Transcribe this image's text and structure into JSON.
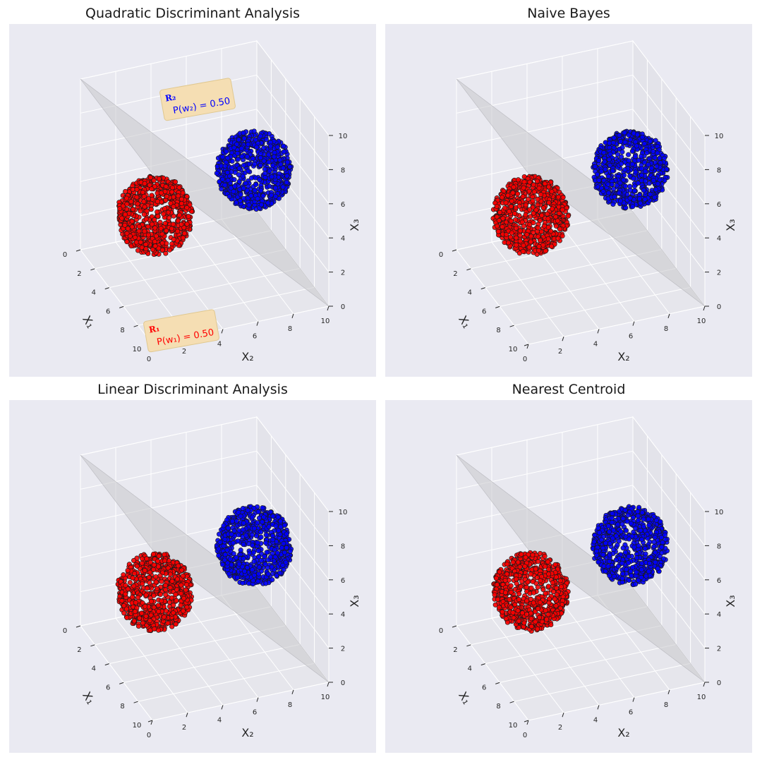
{
  "chart_data": [
    {
      "type": "scatter",
      "title": "Quadratic Discriminant Analysis",
      "xlabel": "X₁",
      "ylabel": "X₂",
      "zlabel": "X₃",
      "projection": "3d",
      "xlim": [
        0,
        10
      ],
      "ylim": [
        0,
        10
      ],
      "zlim": [
        0,
        10
      ],
      "xticks": [
        "0",
        "2",
        "4",
        "6",
        "8",
        "10"
      ],
      "yticks": [
        "0",
        "2",
        "4",
        "6",
        "8",
        "10"
      ],
      "zticks": [
        "0",
        "2",
        "4",
        "6",
        "8",
        "10"
      ],
      "grid": true,
      "series": [
        {
          "color": "#ff0000",
          "center": [
            3,
            3,
            3
          ],
          "radius": 2
        },
        {
          "color": "#0000ff",
          "center": [
            7,
            7,
            7
          ],
          "radius": 2
        }
      ],
      "decision_boundary": "plane",
      "annotations": [
        {
          "region": "R₂",
          "text": "P(w₂) = 0.50",
          "color": "#0000ff"
        },
        {
          "region": "R₁",
          "text": "P(w₁) = 0.50",
          "color": "#ff0000"
        }
      ]
    },
    {
      "type": "scatter",
      "title": "Naive Bayes",
      "xlabel": "X₁",
      "ylabel": "X₂",
      "zlabel": "X₃",
      "projection": "3d",
      "xlim": [
        0,
        10
      ],
      "ylim": [
        0,
        10
      ],
      "zlim": [
        0,
        10
      ],
      "xticks": [
        "0",
        "2",
        "4",
        "6",
        "8",
        "10"
      ],
      "yticks": [
        "0",
        "2",
        "4",
        "6",
        "8",
        "10"
      ],
      "zticks": [
        "0",
        "2",
        "4",
        "6",
        "8",
        "10"
      ],
      "grid": true,
      "series": [
        {
          "color": "#ff0000",
          "center": [
            3,
            3,
            3
          ],
          "radius": 2
        },
        {
          "color": "#0000ff",
          "center": [
            7,
            7,
            7
          ],
          "radius": 2
        }
      ],
      "decision_boundary": "plane",
      "annotations": []
    },
    {
      "type": "scatter",
      "title": "Linear Discriminant Analysis",
      "xlabel": "X₁",
      "ylabel": "X₂",
      "zlabel": "X₃",
      "projection": "3d",
      "xlim": [
        0,
        10
      ],
      "ylim": [
        0,
        10
      ],
      "zlim": [
        0,
        10
      ],
      "xticks": [
        "0",
        "2",
        "4",
        "6",
        "8",
        "10"
      ],
      "yticks": [
        "0",
        "2",
        "4",
        "6",
        "8",
        "10"
      ],
      "zticks": [
        "0",
        "2",
        "4",
        "6",
        "8",
        "10"
      ],
      "grid": true,
      "series": [
        {
          "color": "#ff0000",
          "center": [
            3,
            3,
            3
          ],
          "radius": 2
        },
        {
          "color": "#0000ff",
          "center": [
            7,
            7,
            7
          ],
          "radius": 2
        }
      ],
      "decision_boundary": "plane",
      "annotations": []
    },
    {
      "type": "scatter",
      "title": "Nearest Centroid",
      "xlabel": "X₁",
      "ylabel": "X₂",
      "zlabel": "X₃",
      "projection": "3d",
      "xlim": [
        0,
        10
      ],
      "ylim": [
        0,
        10
      ],
      "zlim": [
        0,
        10
      ],
      "xticks": [
        "0",
        "2",
        "4",
        "6",
        "8",
        "10"
      ],
      "yticks": [
        "0",
        "2",
        "4",
        "6",
        "8",
        "10"
      ],
      "zticks": [
        "0",
        "2",
        "4",
        "6",
        "8",
        "10"
      ],
      "grid": true,
      "series": [
        {
          "color": "#ff0000",
          "center": [
            3,
            3,
            3
          ],
          "radius": 2
        },
        {
          "color": "#0000ff",
          "center": [
            7,
            7,
            7
          ],
          "radius": 2
        }
      ],
      "decision_boundary": "plane",
      "annotations": []
    }
  ]
}
